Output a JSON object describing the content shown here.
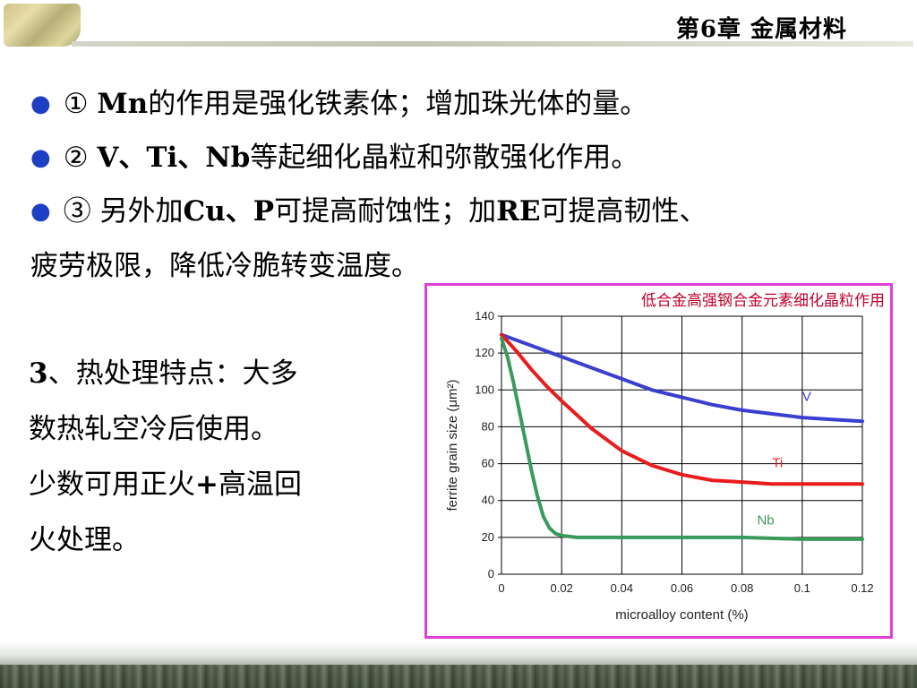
{
  "header": {
    "chapter": "第6章 金属材料"
  },
  "bullets": [
    {
      "num": "①",
      "bold": "Mn",
      "rest": "的作用是强化铁素体；增加珠光体的量。"
    },
    {
      "num": "②",
      "bold": "V、Ti、Nb",
      "rest": "等起细化晶粒和弥散强化作用。"
    },
    {
      "num": "③",
      "pre": "另外加",
      "bold1": "Cu、P",
      "mid": "可提高耐蚀性；加",
      "bold2": "RE",
      "post": "可提高韧性、",
      "cont": "疲劳极限，降低冷脆转变温度。"
    }
  ],
  "heat_treatment": {
    "line1_num": "3",
    "line1": "、热处理特点：大多",
    "line2": "数热轧空冷后使用。",
    "line3_pre": "少数可用正火",
    "line3_bold": "+",
    "line3_post": "高温回",
    "line4": "火处理。"
  },
  "colors": {
    "bullet": "#1c3fc4",
    "frame": "#e040d8",
    "caption": "#c0002a"
  },
  "chart_data": {
    "type": "line",
    "title": "低合金高强钢合金元素细化晶粒作用",
    "xlabel": "microalloy content (%)",
    "ylabel": "ferrite grain size (μm²)",
    "xlim": [
      0,
      0.12
    ],
    "ylim": [
      0,
      140
    ],
    "xticks": [
      "0",
      "0.02",
      "0.04",
      "0.06",
      "0.08",
      "0.1",
      "0.12"
    ],
    "yticks": [
      "0",
      "20",
      "40",
      "60",
      "80",
      "100",
      "120",
      "140"
    ],
    "grid": true,
    "series": [
      {
        "name": "V",
        "color": "#3b3fd0",
        "x": [
          0,
          0.01,
          0.02,
          0.03,
          0.04,
          0.05,
          0.06,
          0.07,
          0.08,
          0.09,
          0.1,
          0.11,
          0.12
        ],
        "y": [
          130,
          124,
          118,
          112,
          106,
          100,
          96,
          92,
          89,
          87,
          85,
          84,
          83
        ]
      },
      {
        "name": "Ti",
        "color": "#e81c1c",
        "x": [
          0,
          0.005,
          0.01,
          0.015,
          0.02,
          0.03,
          0.04,
          0.05,
          0.06,
          0.07,
          0.08,
          0.09,
          0.1,
          0.12
        ],
        "y": [
          130,
          121,
          111,
          102,
          94,
          79,
          67,
          59,
          54,
          51,
          50,
          49,
          49,
          49
        ]
      },
      {
        "name": "Nb",
        "color": "#3a9a5c",
        "x": [
          0,
          0.002,
          0.004,
          0.006,
          0.008,
          0.01,
          0.012,
          0.014,
          0.016,
          0.018,
          0.02,
          0.025,
          0.03,
          0.05,
          0.08,
          0.1,
          0.12
        ],
        "y": [
          128,
          118,
          104,
          88,
          72,
          56,
          42,
          31,
          25,
          22,
          21,
          20,
          20,
          20,
          20,
          19,
          19
        ]
      }
    ]
  }
}
